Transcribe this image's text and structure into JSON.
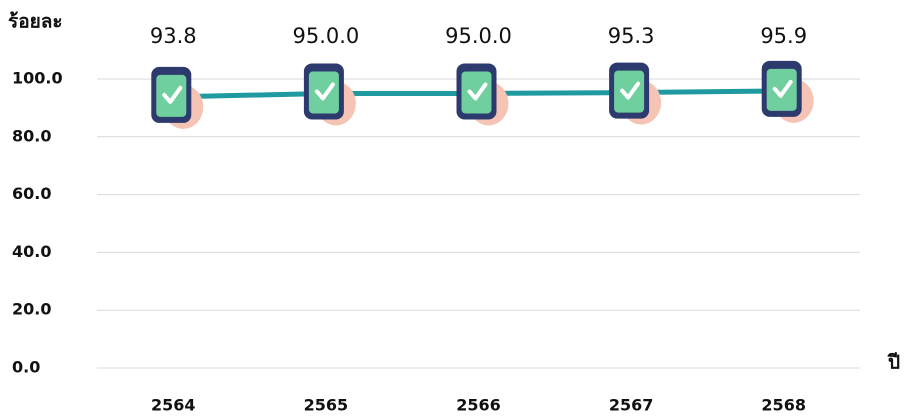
{
  "chart_data": {
    "type": "line",
    "y_label": "ร้อยละ",
    "x_label": "ปี",
    "categories": [
      "2564",
      "2565",
      "2566",
      "2567",
      "2568"
    ],
    "values": [
      93.8,
      95.0,
      95.0,
      95.3,
      95.9
    ],
    "value_labels": [
      "93.8",
      "95.0.0",
      "95.0.0",
      "95.3",
      "95.9"
    ],
    "color": "#1f9aa0",
    "ylim": [
      0,
      100
    ],
    "yticks": [
      {
        "value": 0,
        "label": "0.0"
      },
      {
        "value": 20,
        "label": "20.0"
      },
      {
        "value": 40,
        "label": "40.0"
      },
      {
        "value": 60,
        "label": "60.0"
      },
      {
        "value": 80,
        "label": "80.0"
      },
      {
        "value": 100,
        "label": "100.0"
      }
    ],
    "grid": true
  }
}
